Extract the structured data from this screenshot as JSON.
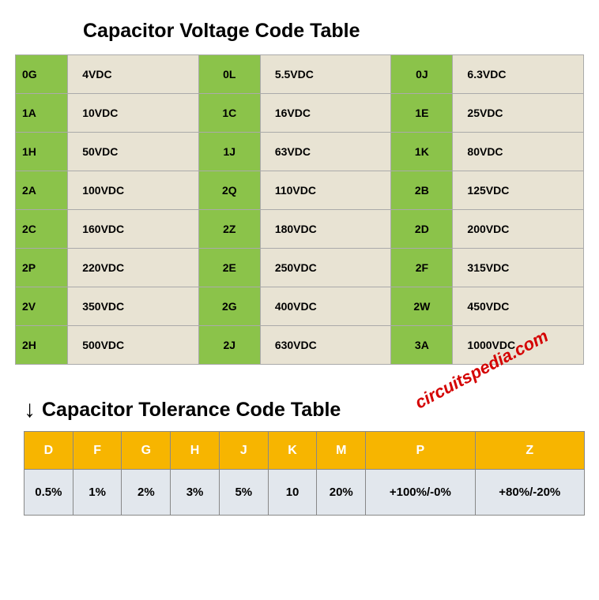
{
  "title1": "Capacitor Voltage Code Table",
  "title2": "Capacitor Tolerance Code Table",
  "arrow": "↓",
  "watermark": "circuitspedia.com",
  "voltage": {
    "rows": [
      {
        "c1": "0G",
        "v1": "4VDC",
        "c2": "0L",
        "v2": "5.5VDC",
        "c3": "0J",
        "v3": "6.3VDC"
      },
      {
        "c1": "1A",
        "v1": "10VDC",
        "c2": "1C",
        "v2": "16VDC",
        "c3": "1E",
        "v3": "25VDC"
      },
      {
        "c1": "1H",
        "v1": "50VDC",
        "c2": "1J",
        "v2": "63VDC",
        "c3": "1K",
        "v3": "80VDC"
      },
      {
        "c1": "2A",
        "v1": "100VDC",
        "c2": "2Q",
        "v2": "110VDC",
        "c3": "2B",
        "v3": "125VDC"
      },
      {
        "c1": "2C",
        "v1": "160VDC",
        "c2": "2Z",
        "v2": "180VDC",
        "c3": "2D",
        "v3": "200VDC"
      },
      {
        "c1": "2P",
        "v1": "220VDC",
        "c2": "2E",
        "v2": "250VDC",
        "c3": "2F",
        "v3": "315VDC"
      },
      {
        "c1": "2V",
        "v1": "350VDC",
        "c2": "2G",
        "v2": "400VDC",
        "c3": "2W",
        "v3": "450VDC"
      },
      {
        "c1": "2H",
        "v1": "500VDC",
        "c2": "2J",
        "v2": "630VDC",
        "c3": "3A",
        "v3": "1000VDC"
      }
    ]
  },
  "tolerance": {
    "headers": [
      "D",
      "F",
      "G",
      "H",
      "J",
      "K",
      "M",
      "P",
      "Z"
    ],
    "values": [
      "0.5%",
      "1%",
      "2%",
      "3%",
      "5%",
      "10",
      "20%",
      "+100%/-0%",
      "+80%/-20%"
    ]
  },
  "colors": {
    "code_bg": "#8bc34a",
    "val_bg": "#e8e3d3",
    "tol_header_bg": "#f7b500",
    "tol_cell_bg": "#e2e7ed",
    "watermark": "#d40000"
  }
}
